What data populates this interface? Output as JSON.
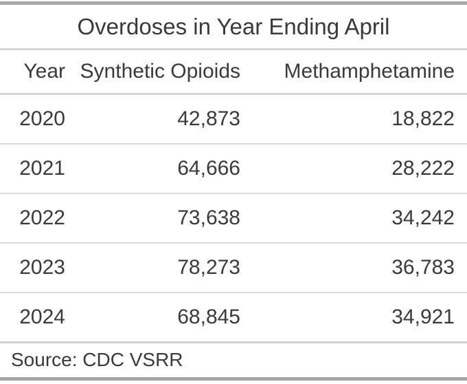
{
  "title": "Overdoses in Year Ending April",
  "columns": [
    "Year",
    "Synthetic Opioids",
    "Methamphetamine"
  ],
  "rows": [
    [
      "2020",
      "42,873",
      "18,822"
    ],
    [
      "2021",
      "64,666",
      "28,222"
    ],
    [
      "2022",
      "73,638",
      "34,242"
    ],
    [
      "2023",
      "78,273",
      "36,783"
    ],
    [
      "2024",
      "68,845",
      "34,921"
    ]
  ],
  "source_note": "Source: CDC VSRR",
  "colors": {
    "text": "#3a3a3a",
    "heavy_rule": "#a5a5a5",
    "light_rule": "#d3d3d3",
    "row_rule": "#d9d9d9",
    "background": "#ffffff"
  },
  "chart_data": {
    "type": "table",
    "title": "Overdoses in Year Ending April",
    "columns": [
      "Year",
      "Synthetic Opioids",
      "Methamphetamine"
    ],
    "rows": [
      [
        2020,
        42873,
        18822
      ],
      [
        2021,
        64666,
        28222
      ],
      [
        2022,
        73638,
        34242
      ],
      [
        2023,
        78273,
        36783
      ],
      [
        2024,
        68845,
        34921
      ]
    ],
    "source": "Source: CDC VSRR"
  }
}
